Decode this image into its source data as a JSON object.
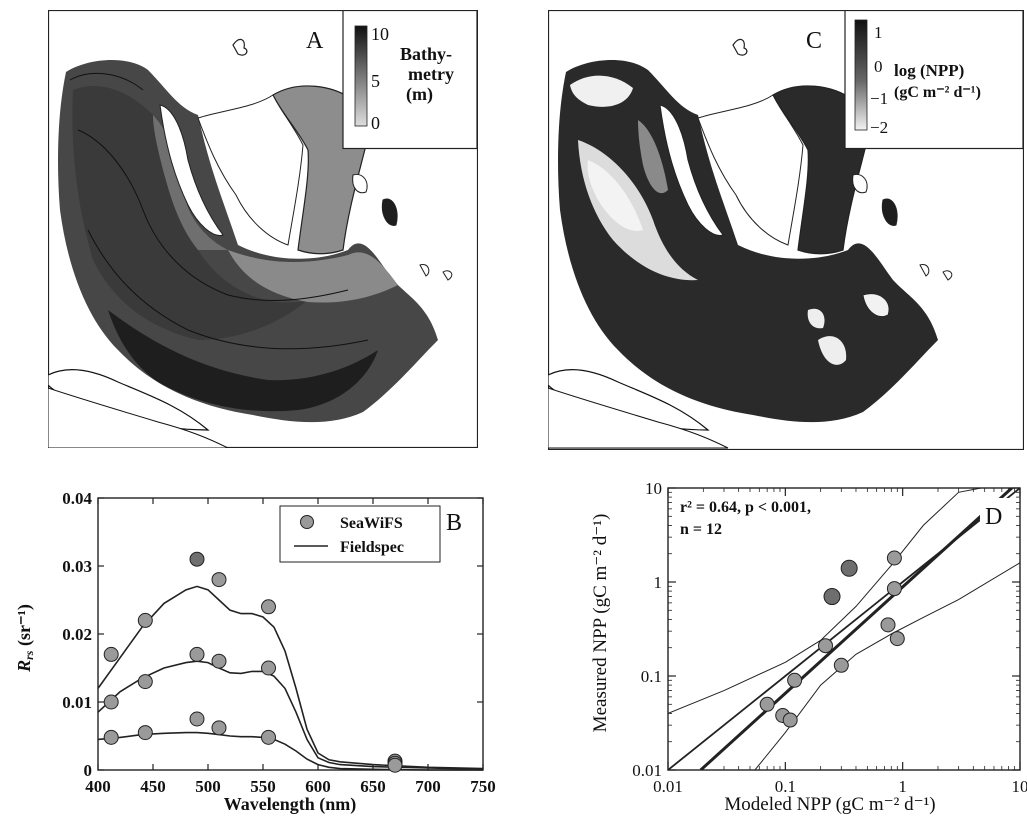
{
  "panels": {
    "A": {
      "letter": "A",
      "colorbar": {
        "label_lines": [
          "Bathy-",
          "metry",
          "(m)"
        ],
        "ticks": [
          "10",
          "5",
          "0"
        ]
      }
    },
    "C": {
      "letter": "C",
      "colorbar": {
        "label_lines": [
          "log (NPP)",
          "(gC m⁻² d⁻¹)"
        ],
        "ticks": [
          "1",
          "0",
          "−1",
          "−2"
        ]
      }
    }
  },
  "chart_data": [
    {
      "panel": "B",
      "type": "scatter",
      "letter": "B",
      "xlabel": "Wavelength (nm)",
      "ylabel": "R_rs (sr⁻¹)",
      "ylabel_main": "R",
      "ylabel_sub": "rs",
      "ylabel_unit": " (sr⁻¹)",
      "xlim": [
        400,
        750
      ],
      "ylim": [
        0,
        0.04
      ],
      "xticks": [
        400,
        450,
        500,
        550,
        600,
        650,
        700,
        750
      ],
      "xtick_labels": [
        "400",
        "450",
        "500",
        "550",
        "600",
        "650",
        "700",
        "750"
      ],
      "yticks": [
        0,
        0.01,
        0.02,
        0.03,
        0.04
      ],
      "ytick_labels": [
        "0",
        "0.01",
        "0.02",
        "0.03",
        "0.04"
      ],
      "legend": {
        "position": "top-right",
        "entries": [
          "SeaWiFS",
          "Fieldspec"
        ]
      },
      "series": [
        {
          "name": "SeaWiFS",
          "kind": "points",
          "x": [
            412,
            443,
            490,
            510,
            555,
            670,
            412,
            443,
            490,
            510,
            555,
            670,
            412,
            443,
            490,
            510,
            555,
            670
          ],
          "y": [
            0.017,
            0.022,
            0.031,
            0.028,
            0.024,
            0.0013,
            0.01,
            0.013,
            0.017,
            0.016,
            0.015,
            0.001,
            0.0048,
            0.0055,
            0.0075,
            0.0062,
            0.0048,
            0.0007
          ]
        },
        {
          "name": "Fieldspec",
          "kind": "lines",
          "curves": [
            {
              "x": [
                400,
                420,
                440,
                460,
                480,
                490,
                500,
                510,
                520,
                530,
                540,
                550,
                560,
                570,
                580,
                590,
                600,
                610,
                620,
                650,
                700,
                750
              ],
              "y": [
                0.012,
                0.0165,
                0.021,
                0.0245,
                0.0265,
                0.027,
                0.0265,
                0.025,
                0.0235,
                0.023,
                0.023,
                0.0225,
                0.021,
                0.0175,
                0.012,
                0.006,
                0.0025,
                0.0015,
                0.0012,
                0.0008,
                0.0004,
                0.0002
              ]
            },
            {
              "x": [
                400,
                420,
                440,
                460,
                480,
                490,
                500,
                510,
                520,
                530,
                540,
                550,
                560,
                570,
                580,
                590,
                600,
                610,
                620,
                650,
                700,
                750
              ],
              "y": [
                0.0085,
                0.0115,
                0.0135,
                0.015,
                0.0158,
                0.016,
                0.0158,
                0.015,
                0.0143,
                0.0142,
                0.0145,
                0.0145,
                0.0138,
                0.012,
                0.0085,
                0.0045,
                0.0018,
                0.0011,
                0.0008,
                0.0005,
                0.0003,
                0.0001
              ]
            },
            {
              "x": [
                400,
                420,
                440,
                460,
                480,
                490,
                500,
                510,
                520,
                530,
                540,
                550,
                560,
                570,
                580,
                590,
                600,
                610,
                620,
                650,
                700,
                750
              ],
              "y": [
                0.0045,
                0.0048,
                0.0052,
                0.0054,
                0.0055,
                0.0055,
                0.0054,
                0.0052,
                0.005,
                0.0049,
                0.0049,
                0.0048,
                0.0045,
                0.0038,
                0.0028,
                0.0016,
                0.0008,
                0.0004,
                0.0002,
                0.0001,
                0.0,
                0.0
              ]
            }
          ]
        }
      ]
    },
    {
      "panel": "D",
      "type": "scatter",
      "letter": "D",
      "xlabel": "Modeled NPP (gC m⁻² d⁻¹)",
      "ylabel": "Measured NPP (gC m⁻² d⁻¹)",
      "xscale": "log",
      "yscale": "log",
      "xlim": [
        0.01,
        10
      ],
      "ylim": [
        0.01,
        10
      ],
      "xticks": [
        0.01,
        0.1,
        1,
        10
      ],
      "xtick_labels": [
        "0.01",
        "0.1",
        "1",
        "10"
      ],
      "yticks": [
        0.01,
        0.1,
        1,
        10
      ],
      "ytick_labels": [
        "0.01",
        "0.1",
        "1",
        "10"
      ],
      "annotation_lines": [
        "r² = 0.64, p < 0.001,",
        "n = 12"
      ],
      "points": {
        "x": [
          0.07,
          0.095,
          0.11,
          0.12,
          0.22,
          0.3,
          0.75,
          0.85,
          0.85,
          0.9
        ],
        "y": [
          0.05,
          0.038,
          0.034,
          0.09,
          0.21,
          0.13,
          0.35,
          1.8,
          0.85,
          0.25
        ]
      },
      "highlight_points": {
        "x": [
          0.25,
          0.35
        ],
        "y": [
          0.7,
          1.4
        ]
      },
      "lines": [
        {
          "role": "fit",
          "x": [
            0.019,
            10
          ],
          "y": [
            0.01,
            12
          ]
        },
        {
          "role": "one-to-one",
          "x": [
            0.01,
            10
          ],
          "y": [
            0.01,
            10
          ]
        },
        {
          "role": "upper-ci",
          "x": [
            0.01,
            0.03,
            0.1,
            0.2,
            0.4,
            0.8,
            1.5,
            3,
            10
          ],
          "y": [
            0.04,
            0.07,
            0.14,
            0.24,
            0.55,
            1.5,
            4.0,
            9.0,
            12
          ]
        },
        {
          "role": "lower-ci",
          "x": [
            0.055,
            0.1,
            0.2,
            0.4,
            0.8,
            1.5,
            3,
            10
          ],
          "y": [
            0.01,
            0.025,
            0.08,
            0.17,
            0.28,
            0.42,
            0.65,
            1.6
          ]
        }
      ]
    }
  ]
}
